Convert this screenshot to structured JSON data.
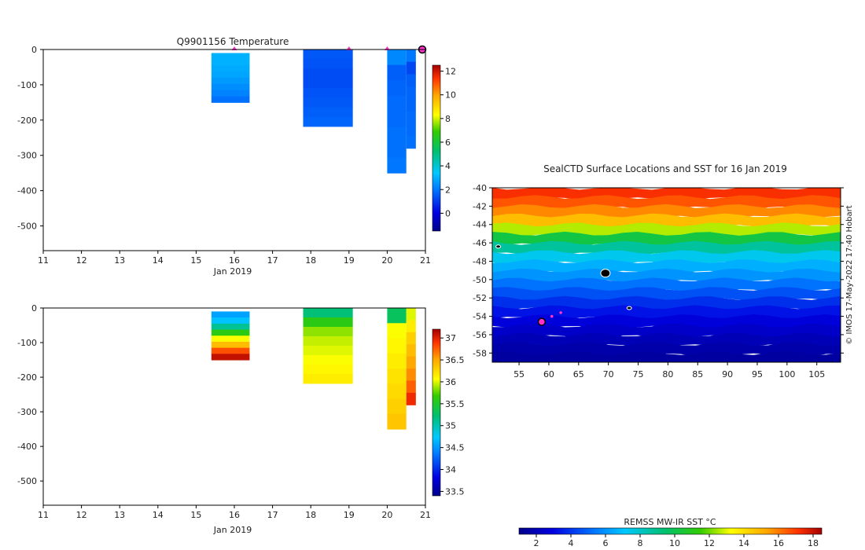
{
  "charts": {
    "temperature": {
      "title": "Q9901156  Temperature",
      "xlabel": "Jan 2019",
      "x_ticks": [
        "11",
        "12",
        "13",
        "14",
        "15",
        "16",
        "17",
        "18",
        "19",
        "20",
        "21"
      ],
      "y_ticks": [
        "0",
        "-100",
        "-200",
        "-300",
        "-400",
        "-500"
      ],
      "colorbar_ticks": [
        "12",
        "10",
        "8",
        "6",
        "4",
        "2",
        "0"
      ]
    },
    "salinity": {
      "xlabel": "Jan 2019",
      "x_ticks": [
        "11",
        "12",
        "13",
        "14",
        "15",
        "16",
        "17",
        "18",
        "19",
        "20",
        "21"
      ],
      "y_ticks": [
        "0",
        "-100",
        "-200",
        "-300",
        "-400",
        "-500"
      ],
      "colorbar_ticks": [
        "37",
        "36.5",
        "36",
        "35.5",
        "35",
        "34.5",
        "34",
        "33.5"
      ]
    },
    "map": {
      "title": "SealCTD Surface Locations and SST for 16 Jan 2019",
      "y_ticks": [
        "-40",
        "-42",
        "-44",
        "-46",
        "-48",
        "-50",
        "-52",
        "-54",
        "-56",
        "-58"
      ],
      "x_ticks": [
        "55",
        "60",
        "65",
        "70",
        "75",
        "80",
        "85",
        "90",
        "95",
        "100",
        "105"
      ],
      "credit": "© IMOS 17-May-2022 17:40 Hobart",
      "colorbar_label": "REMSS MW-IR SST °C",
      "colorbar_ticks": [
        "2",
        "4",
        "6",
        "8",
        "10",
        "12",
        "14",
        "16",
        "18"
      ]
    }
  },
  "chart_data": [
    {
      "type": "heatmap",
      "title": "Q9901156  Temperature",
      "xlabel": "Jan 2019",
      "ylabel": "",
      "xlim": [
        11,
        21
      ],
      "ylim": [
        -570,
        0
      ],
      "clim": [
        -1.5,
        12.5
      ],
      "colorbar_ticks": [
        12,
        10,
        8,
        6,
        4,
        2,
        0
      ],
      "profiles": [
        {
          "x0": 15.4,
          "x1": 16.4,
          "depth": [
            -10,
            -150
          ],
          "values": [
            3.0,
            3.0,
            2.9,
            2.8,
            2.6,
            2.4,
            2.2,
            1.9
          ]
        },
        {
          "x0": 17.8,
          "x1": 19.1,
          "depth": [
            0,
            -218
          ],
          "values": [
            1.5,
            1.4,
            1.3,
            1.3,
            1.4,
            1.5,
            1.6,
            1.7
          ]
        },
        {
          "x0": 20.0,
          "x1": 20.5,
          "depth": [
            0,
            -350
          ],
          "values": [
            2.3,
            1.6,
            1.7,
            1.8,
            1.8,
            1.9,
            1.9,
            2.0
          ]
        },
        {
          "x0": 20.5,
          "x1": 20.75,
          "depth": [
            0,
            -280
          ],
          "values": [
            2.0,
            1.2,
            1.6,
            1.7,
            1.7,
            1.8,
            1.8,
            1.9
          ]
        }
      ],
      "surface_markers": [
        16.0,
        19.0,
        20.0
      ],
      "current_marker": 21.0
    },
    {
      "type": "heatmap",
      "title": "",
      "xlabel": "Jan 2019",
      "ylabel": "",
      "xlim": [
        11,
        21
      ],
      "ylim": [
        -570,
        0
      ],
      "clim": [
        33.4,
        37.2
      ],
      "colorbar_ticks": [
        37,
        36.5,
        36,
        35.5,
        35,
        34.5,
        34,
        33.5
      ],
      "profiles": [
        {
          "x0": 15.4,
          "x1": 16.4,
          "depth": [
            -10,
            -150
          ],
          "values": [
            34.55,
            34.7,
            35.1,
            35.6,
            36.05,
            36.4,
            36.8,
            37.1
          ]
        },
        {
          "x0": 17.8,
          "x1": 19.1,
          "depth": [
            0,
            -218
          ],
          "values": [
            35.2,
            35.6,
            35.85,
            35.95,
            36.0,
            36.05,
            36.1,
            36.15
          ]
        },
        {
          "x0": 20.0,
          "x1": 20.5,
          "depth": [
            0,
            -350
          ],
          "values": [
            35.3,
            36.05,
            36.1,
            36.15,
            36.2,
            36.25,
            36.3,
            36.35
          ]
        },
        {
          "x0": 20.5,
          "x1": 20.75,
          "depth": [
            0,
            -280
          ],
          "values": [
            36.0,
            36.15,
            36.3,
            36.4,
            36.5,
            36.6,
            36.75,
            36.95
          ]
        }
      ]
    },
    {
      "type": "heatmap",
      "title": "SealCTD Surface Locations and SST for 16 Jan 2019",
      "xlabel": "",
      "ylabel": "",
      "xlim": [
        50.5,
        109
      ],
      "ylim": [
        -59,
        -40
      ],
      "clim": [
        1,
        18.5
      ],
      "colorbar_label": "REMSS MW-IR SST °C",
      "colorbar_ticks": [
        2,
        4,
        6,
        8,
        10,
        12,
        14,
        16,
        18
      ],
      "sst_bands": [
        {
          "lat": [
            -40,
            -41
          ],
          "sst": 17.2
        },
        {
          "lat": [
            -41,
            -42
          ],
          "sst": 16.6
        },
        {
          "lat": [
            -42,
            -43
          ],
          "sst": 15.8
        },
        {
          "lat": [
            -43,
            -44
          ],
          "sst": 14.8
        },
        {
          "lat": [
            -44,
            -45
          ],
          "sst": 12.6
        },
        {
          "lat": [
            -45,
            -46
          ],
          "sst": 10.2
        },
        {
          "lat": [
            -46,
            -47
          ],
          "sst": 8.7
        },
        {
          "lat": [
            -47,
            -48
          ],
          "sst": 7.4
        },
        {
          "lat": [
            -48,
            -49
          ],
          "sst": 6.6
        },
        {
          "lat": [
            -49,
            -50
          ],
          "sst": 6.0
        },
        {
          "lat": [
            -50,
            -51
          ],
          "sst": 5.3
        },
        {
          "lat": [
            -51,
            -52
          ],
          "sst": 4.6
        },
        {
          "lat": [
            -52,
            -53
          ],
          "sst": 3.9
        },
        {
          "lat": [
            -53,
            -54
          ],
          "sst": 3.3
        },
        {
          "lat": [
            -54,
            -55
          ],
          "sst": 2.8
        },
        {
          "lat": [
            -55,
            -56
          ],
          "sst": 2.4
        },
        {
          "lat": [
            -56,
            -57
          ],
          "sst": 2.0
        },
        {
          "lat": [
            -57,
            -58
          ],
          "sst": 1.7
        },
        {
          "lat": [
            -58,
            -59
          ],
          "sst": 1.5
        }
      ],
      "seal_track": [
        {
          "lon": 58.8,
          "lat": -54.6,
          "current": true
        },
        {
          "lon": 60.5,
          "lat": -54.0,
          "current": false
        },
        {
          "lon": 62.0,
          "lat": -53.6,
          "current": false
        }
      ],
      "islands": [
        {
          "lon": 51.5,
          "lat": -46.4
        },
        {
          "lon": 69.5,
          "lat": -49.3
        },
        {
          "lon": 73.5,
          "lat": -53.1
        }
      ]
    }
  ]
}
